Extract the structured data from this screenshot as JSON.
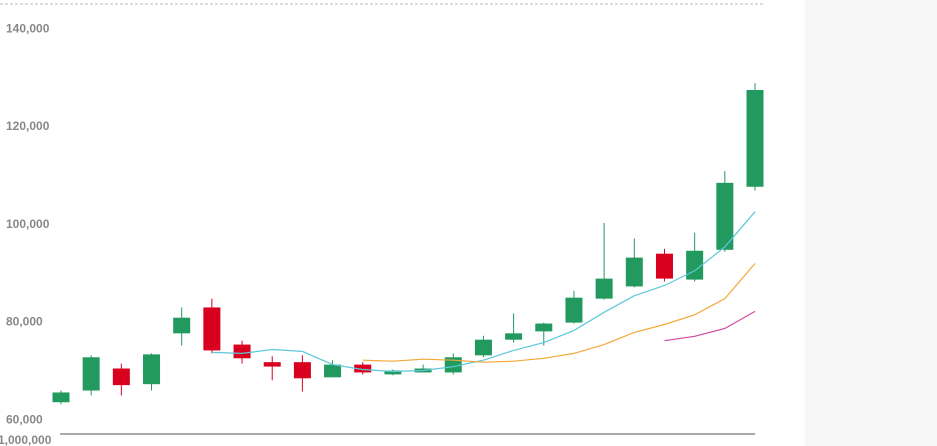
{
  "chart_data": {
    "type": "candlestick",
    "ylim": [
      58000,
      146000
    ],
    "yticks": [
      {
        "value": 60000,
        "label": "60,000"
      },
      {
        "value": 80000,
        "label": "80,000"
      },
      {
        "value": 100000,
        "label": "100,000"
      },
      {
        "value": 120000,
        "label": "120,000"
      },
      {
        "value": 140000,
        "label": "140,000"
      }
    ],
    "grid": false,
    "up_color": "#22995f",
    "down_color": "#d8001e",
    "open": [
      64500,
      66900,
      71400,
      68200,
      78600,
      83900,
      76300,
      72700,
      72700,
      69600,
      72200,
      70200,
      70600,
      70600,
      74100,
      77300,
      79000,
      80800,
      85700,
      88200,
      94900,
      89600,
      95700,
      108600
    ],
    "high": [
      66900,
      74100,
      72400,
      74500,
      83900,
      85700,
      77100,
      73900,
      74100,
      73100,
      72700,
      71200,
      72200,
      74500,
      78100,
      82700,
      80800,
      87300,
      101200,
      98000,
      95900,
      99200,
      111800,
      129800
    ],
    "low": [
      64100,
      65900,
      65900,
      66900,
      76100,
      74500,
      72400,
      69000,
      66700,
      69600,
      70200,
      70000,
      70600,
      70200,
      73700,
      76700,
      76100,
      80600,
      85500,
      88000,
      89200,
      89200,
      95300,
      107800
    ],
    "close": [
      66500,
      73700,
      68000,
      74300,
      81800,
      75100,
      73500,
      71800,
      69400,
      72200,
      70600,
      71000,
      71400,
      73700,
      77300,
      78600,
      80600,
      85900,
      89800,
      94100,
      89800,
      95500,
      109400,
      128400
    ],
    "series": [
      {
        "color": "#5bc8d8",
        "values": [
          null,
          null,
          null,
          null,
          null,
          74700,
          74500,
          75300,
          74900,
          72200,
          71200,
          70800,
          71000,
          71800,
          73100,
          75100,
          76700,
          79200,
          82900,
          86300,
          88400,
          91400,
          96300,
          103500
        ]
      },
      {
        "color": "#f2a83a",
        "values": [
          null,
          null,
          null,
          null,
          null,
          null,
          null,
          null,
          null,
          null,
          73100,
          72900,
          73300,
          73100,
          72700,
          72900,
          73500,
          74500,
          76300,
          78800,
          80400,
          82400,
          85700,
          92900
        ]
      },
      {
        "color": "#d0479a",
        "values": [
          null,
          null,
          null,
          null,
          null,
          null,
          null,
          null,
          null,
          null,
          null,
          null,
          null,
          null,
          null,
          null,
          null,
          null,
          null,
          null,
          77100,
          78000,
          79600,
          83100
        ]
      }
    ],
    "annotations": [
      "1,000,000"
    ]
  }
}
